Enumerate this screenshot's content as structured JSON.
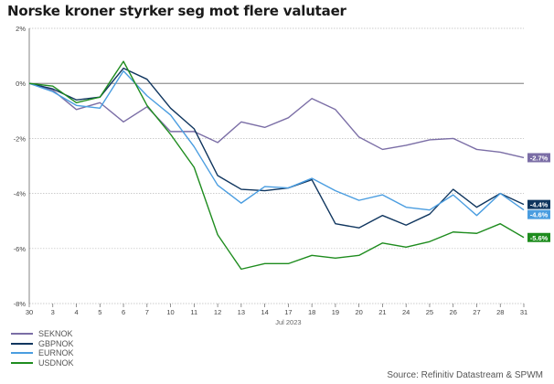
{
  "chart_data": {
    "type": "line",
    "title": "Norske kroner styrker seg mot flere valutaer",
    "xlabel": "Jul 2023",
    "ylabel": "",
    "categories": [
      "30",
      "3",
      "4",
      "5",
      "6",
      "7",
      "10",
      "11",
      "12",
      "13",
      "14",
      "17",
      "18",
      "19",
      "20",
      "21",
      "24",
      "25",
      "26",
      "27",
      "28",
      "31"
    ],
    "ylim": [
      -8,
      2
    ],
    "yticks": [
      2,
      0,
      -2,
      -4,
      -6,
      -8
    ],
    "ytick_labels": [
      "2%",
      "0%",
      "-2%",
      "-4%",
      "-6%",
      "-8%"
    ],
    "grid": true,
    "legend_position": "bottom-left",
    "series": [
      {
        "name": "SEKNOK",
        "color": "#7b6ea6",
        "values": [
          0,
          -0.25,
          -0.95,
          -0.7,
          -1.4,
          -0.85,
          -1.75,
          -1.75,
          -2.15,
          -1.4,
          -1.6,
          -1.25,
          -0.55,
          -0.95,
          -1.95,
          -2.4,
          -2.25,
          -2.05,
          -2.0,
          -2.4,
          -2.5,
          -2.7
        ],
        "end_label": "-2.7%"
      },
      {
        "name": "GBPNOK",
        "color": "#10365f",
        "values": [
          0,
          -0.2,
          -0.6,
          -0.5,
          0.55,
          0.15,
          -0.9,
          -1.65,
          -3.35,
          -3.85,
          -3.9,
          -3.8,
          -3.5,
          -5.1,
          -5.25,
          -4.8,
          -5.15,
          -4.75,
          -3.85,
          -4.5,
          -4.0,
          -4.4
        ],
        "end_label": "-4.4%"
      },
      {
        "name": "EURNOK",
        "color": "#4a9de0",
        "values": [
          0,
          -0.3,
          -0.8,
          -0.9,
          0.45,
          -0.45,
          -1.15,
          -2.3,
          -3.7,
          -4.35,
          -3.75,
          -3.8,
          -3.45,
          -3.9,
          -4.25,
          -4.05,
          -4.5,
          -4.6,
          -4.05,
          -4.8,
          -4.0,
          -4.6
        ],
        "end_label": "-4.6%"
      },
      {
        "name": "USDNOK",
        "color": "#1e8c1e",
        "values": [
          0,
          -0.1,
          -0.7,
          -0.5,
          0.8,
          -0.8,
          -1.85,
          -3.05,
          -5.5,
          -6.75,
          -6.55,
          -6.55,
          -6.25,
          -6.35,
          -6.25,
          -5.8,
          -5.95,
          -5.75,
          -5.4,
          -5.45,
          -5.1,
          -5.6
        ],
        "end_label": "-5.6%"
      }
    ]
  },
  "source": "Source: Refinitiv Datastream & SPWM"
}
